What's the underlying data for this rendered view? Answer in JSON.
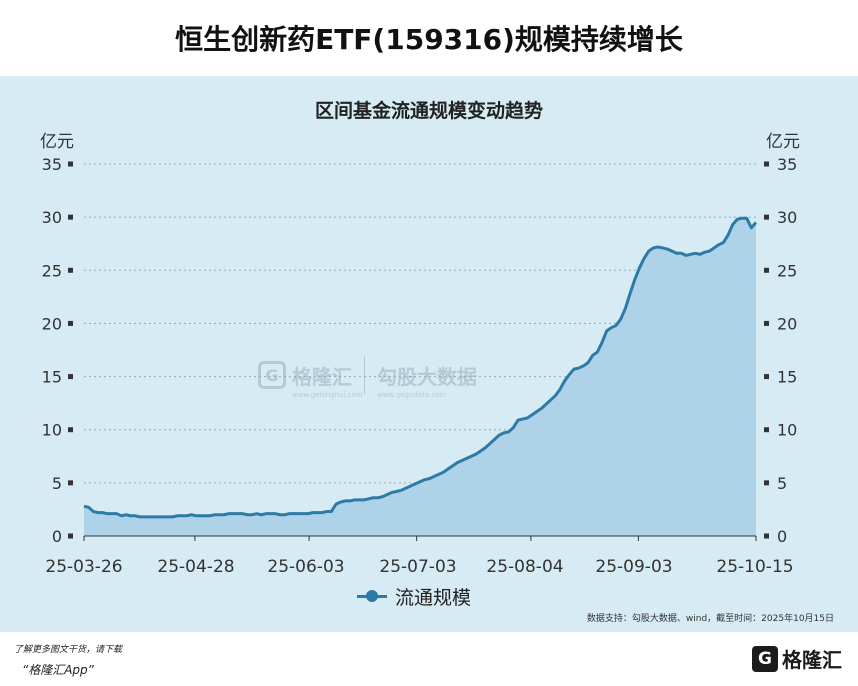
{
  "page": {
    "title": "恒生创新药ETF(159316)规模持续增长",
    "chart_title": "区间基金流通规模变动趋势",
    "unit_left": "亿元",
    "unit_right": "亿元",
    "legend_label": "流通规模",
    "source": "数据支持：勾股大数据、wind，截至时间：2025年10月15日",
    "footnote": "了解更多图文干货，请下载",
    "footnote_app": "“格隆汇App”",
    "watermark_left": "格隆汇",
    "watermark_right": "勾股大数据",
    "watermark_url_left": "www.gelonghui.com",
    "watermark_url_right": "www.gogudata.com",
    "brand_name": "格隆汇",
    "brand_logo_letter": "G"
  },
  "colors": {
    "line": "#2e7aa6",
    "area": "#aed3e8",
    "panel": "#d6ebf3",
    "grid": "#9aa8b0"
  },
  "chart_data": {
    "type": "area",
    "title": "区间基金流通规模变动趋势",
    "ylabel": "亿元",
    "ylim": [
      0,
      35
    ],
    "yticks": [
      0,
      5,
      10,
      15,
      20,
      25,
      30,
      35
    ],
    "xticks": [
      "25-03-26",
      "25-04-28",
      "25-06-03",
      "25-07-03",
      "25-08-04",
      "25-09-03",
      "25-10-15"
    ],
    "grid": true,
    "legend_position": "bottom-center",
    "series": [
      {
        "name": "流通规模",
        "values": [
          2.8,
          2.7,
          2.3,
          2.2,
          2.2,
          2.1,
          2.1,
          2.1,
          1.9,
          2.0,
          1.9,
          1.9,
          1.8,
          1.8,
          1.8,
          1.8,
          1.8,
          1.8,
          1.8,
          1.8,
          1.9,
          1.9,
          1.9,
          2.0,
          1.9,
          1.9,
          1.9,
          1.9,
          2.0,
          2.0,
          2.0,
          2.1,
          2.1,
          2.1,
          2.1,
          2.0,
          2.0,
          2.1,
          2.0,
          2.1,
          2.1,
          2.1,
          2.0,
          2.0,
          2.1,
          2.1,
          2.1,
          2.1,
          2.1,
          2.2,
          2.2,
          2.2,
          2.3,
          2.3,
          3.0,
          3.2,
          3.3,
          3.3,
          3.4,
          3.4,
          3.4,
          3.5,
          3.6,
          3.6,
          3.7,
          3.9,
          4.1,
          4.2,
          4.3,
          4.5,
          4.7,
          4.9,
          5.1,
          5.3,
          5.4,
          5.6,
          5.8,
          6.0,
          6.3,
          6.6,
          6.9,
          7.1,
          7.3,
          7.5,
          7.7,
          8.0,
          8.3,
          8.7,
          9.1,
          9.5,
          9.7,
          9.8,
          10.2,
          10.9,
          11.0,
          11.1,
          11.4,
          11.7,
          12.0,
          12.4,
          12.8,
          13.2,
          13.8,
          14.6,
          15.2,
          15.7,
          15.8,
          16.0,
          16.3,
          17.0,
          17.3,
          18.2,
          19.3,
          19.6,
          19.8,
          20.4,
          21.4,
          22.8,
          24.1,
          25.2,
          26.1,
          26.8,
          27.1,
          27.2,
          27.1,
          27.0,
          26.8,
          26.6,
          26.6,
          26.4,
          26.5,
          26.6,
          26.5,
          26.7,
          26.8,
          27.1,
          27.4,
          27.6,
          28.3,
          29.3,
          29.8,
          29.9,
          29.9,
          29.0,
          29.5
        ]
      }
    ]
  }
}
